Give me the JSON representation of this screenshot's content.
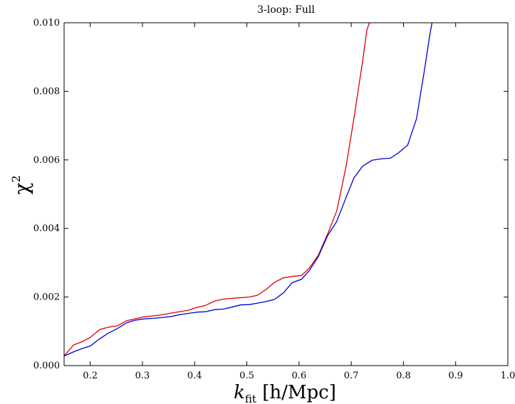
{
  "chart_data": {
    "type": "line",
    "title": "3-loop: Full",
    "xlabel": "k_fit [h/Mpc]",
    "xlabel_parts": {
      "k": "k",
      "sub": "fit",
      "unit": " [h/Mpc]"
    },
    "ylabel": "χ²",
    "ylabel_parts": {
      "chi": "χ",
      "sup": "2"
    },
    "xlim": [
      0.15,
      1.0
    ],
    "ylim": [
      0.0,
      0.01
    ],
    "xticks": [
      0.2,
      0.3,
      0.4,
      0.5,
      0.6,
      0.7,
      0.8,
      0.9,
      1.0
    ],
    "xtick_labels": [
      "0.2",
      "0.3",
      "0.4",
      "0.5",
      "0.6",
      "0.7",
      "0.8",
      "0.9",
      "1.0"
    ],
    "yticks": [
      0.0,
      0.002,
      0.004,
      0.006,
      0.008,
      0.01
    ],
    "ytick_labels": [
      "0.000",
      "0.002",
      "0.004",
      "0.006",
      "0.008",
      "0.010"
    ],
    "grid": false,
    "legend": "none",
    "series": [
      {
        "color": "#dd0000",
        "x": [
          0.15,
          0.168,
          0.185,
          0.2,
          0.218,
          0.235,
          0.252,
          0.27,
          0.285,
          0.302,
          0.32,
          0.337,
          0.355,
          0.37,
          0.387,
          0.405,
          0.42,
          0.438,
          0.455,
          0.47,
          0.488,
          0.505,
          0.52,
          0.537,
          0.553,
          0.57,
          0.587,
          0.605,
          0.62,
          0.637,
          0.655,
          0.672,
          0.69,
          0.705,
          0.722,
          0.73,
          0.74
        ],
        "y": [
          0.00028,
          0.0006,
          0.0007,
          0.00082,
          0.00105,
          0.00112,
          0.00116,
          0.00131,
          0.00136,
          0.00142,
          0.00145,
          0.00148,
          0.00153,
          0.00157,
          0.00161,
          0.0017,
          0.00175,
          0.00188,
          0.00194,
          0.00196,
          0.00198,
          0.002,
          0.00205,
          0.00222,
          0.00243,
          0.00256,
          0.0026,
          0.00263,
          0.00285,
          0.00322,
          0.00385,
          0.0045,
          0.0058,
          0.0072,
          0.0089,
          0.0098,
          0.0102
        ]
      },
      {
        "color": "#0000dd",
        "x": [
          0.15,
          0.168,
          0.185,
          0.2,
          0.218,
          0.235,
          0.252,
          0.27,
          0.285,
          0.302,
          0.32,
          0.337,
          0.355,
          0.37,
          0.387,
          0.405,
          0.42,
          0.438,
          0.455,
          0.47,
          0.488,
          0.505,
          0.52,
          0.537,
          0.553,
          0.57,
          0.587,
          0.605,
          0.62,
          0.637,
          0.655,
          0.672,
          0.69,
          0.705,
          0.722,
          0.74,
          0.757,
          0.775,
          0.79,
          0.808,
          0.825,
          0.84,
          0.85,
          0.857
        ],
        "y": [
          0.00028,
          0.0004,
          0.0005,
          0.00057,
          0.00078,
          0.00095,
          0.00108,
          0.00125,
          0.00132,
          0.00136,
          0.00138,
          0.0014,
          0.00143,
          0.00148,
          0.00152,
          0.00156,
          0.00157,
          0.00163,
          0.00165,
          0.0017,
          0.00177,
          0.00178,
          0.00182,
          0.00187,
          0.00193,
          0.00212,
          0.00242,
          0.00252,
          0.00278,
          0.00318,
          0.0038,
          0.0042,
          0.0049,
          0.00547,
          0.00582,
          0.00599,
          0.00603,
          0.00605,
          0.0062,
          0.00643,
          0.0072,
          0.0086,
          0.0096,
          0.0102
        ]
      }
    ]
  }
}
